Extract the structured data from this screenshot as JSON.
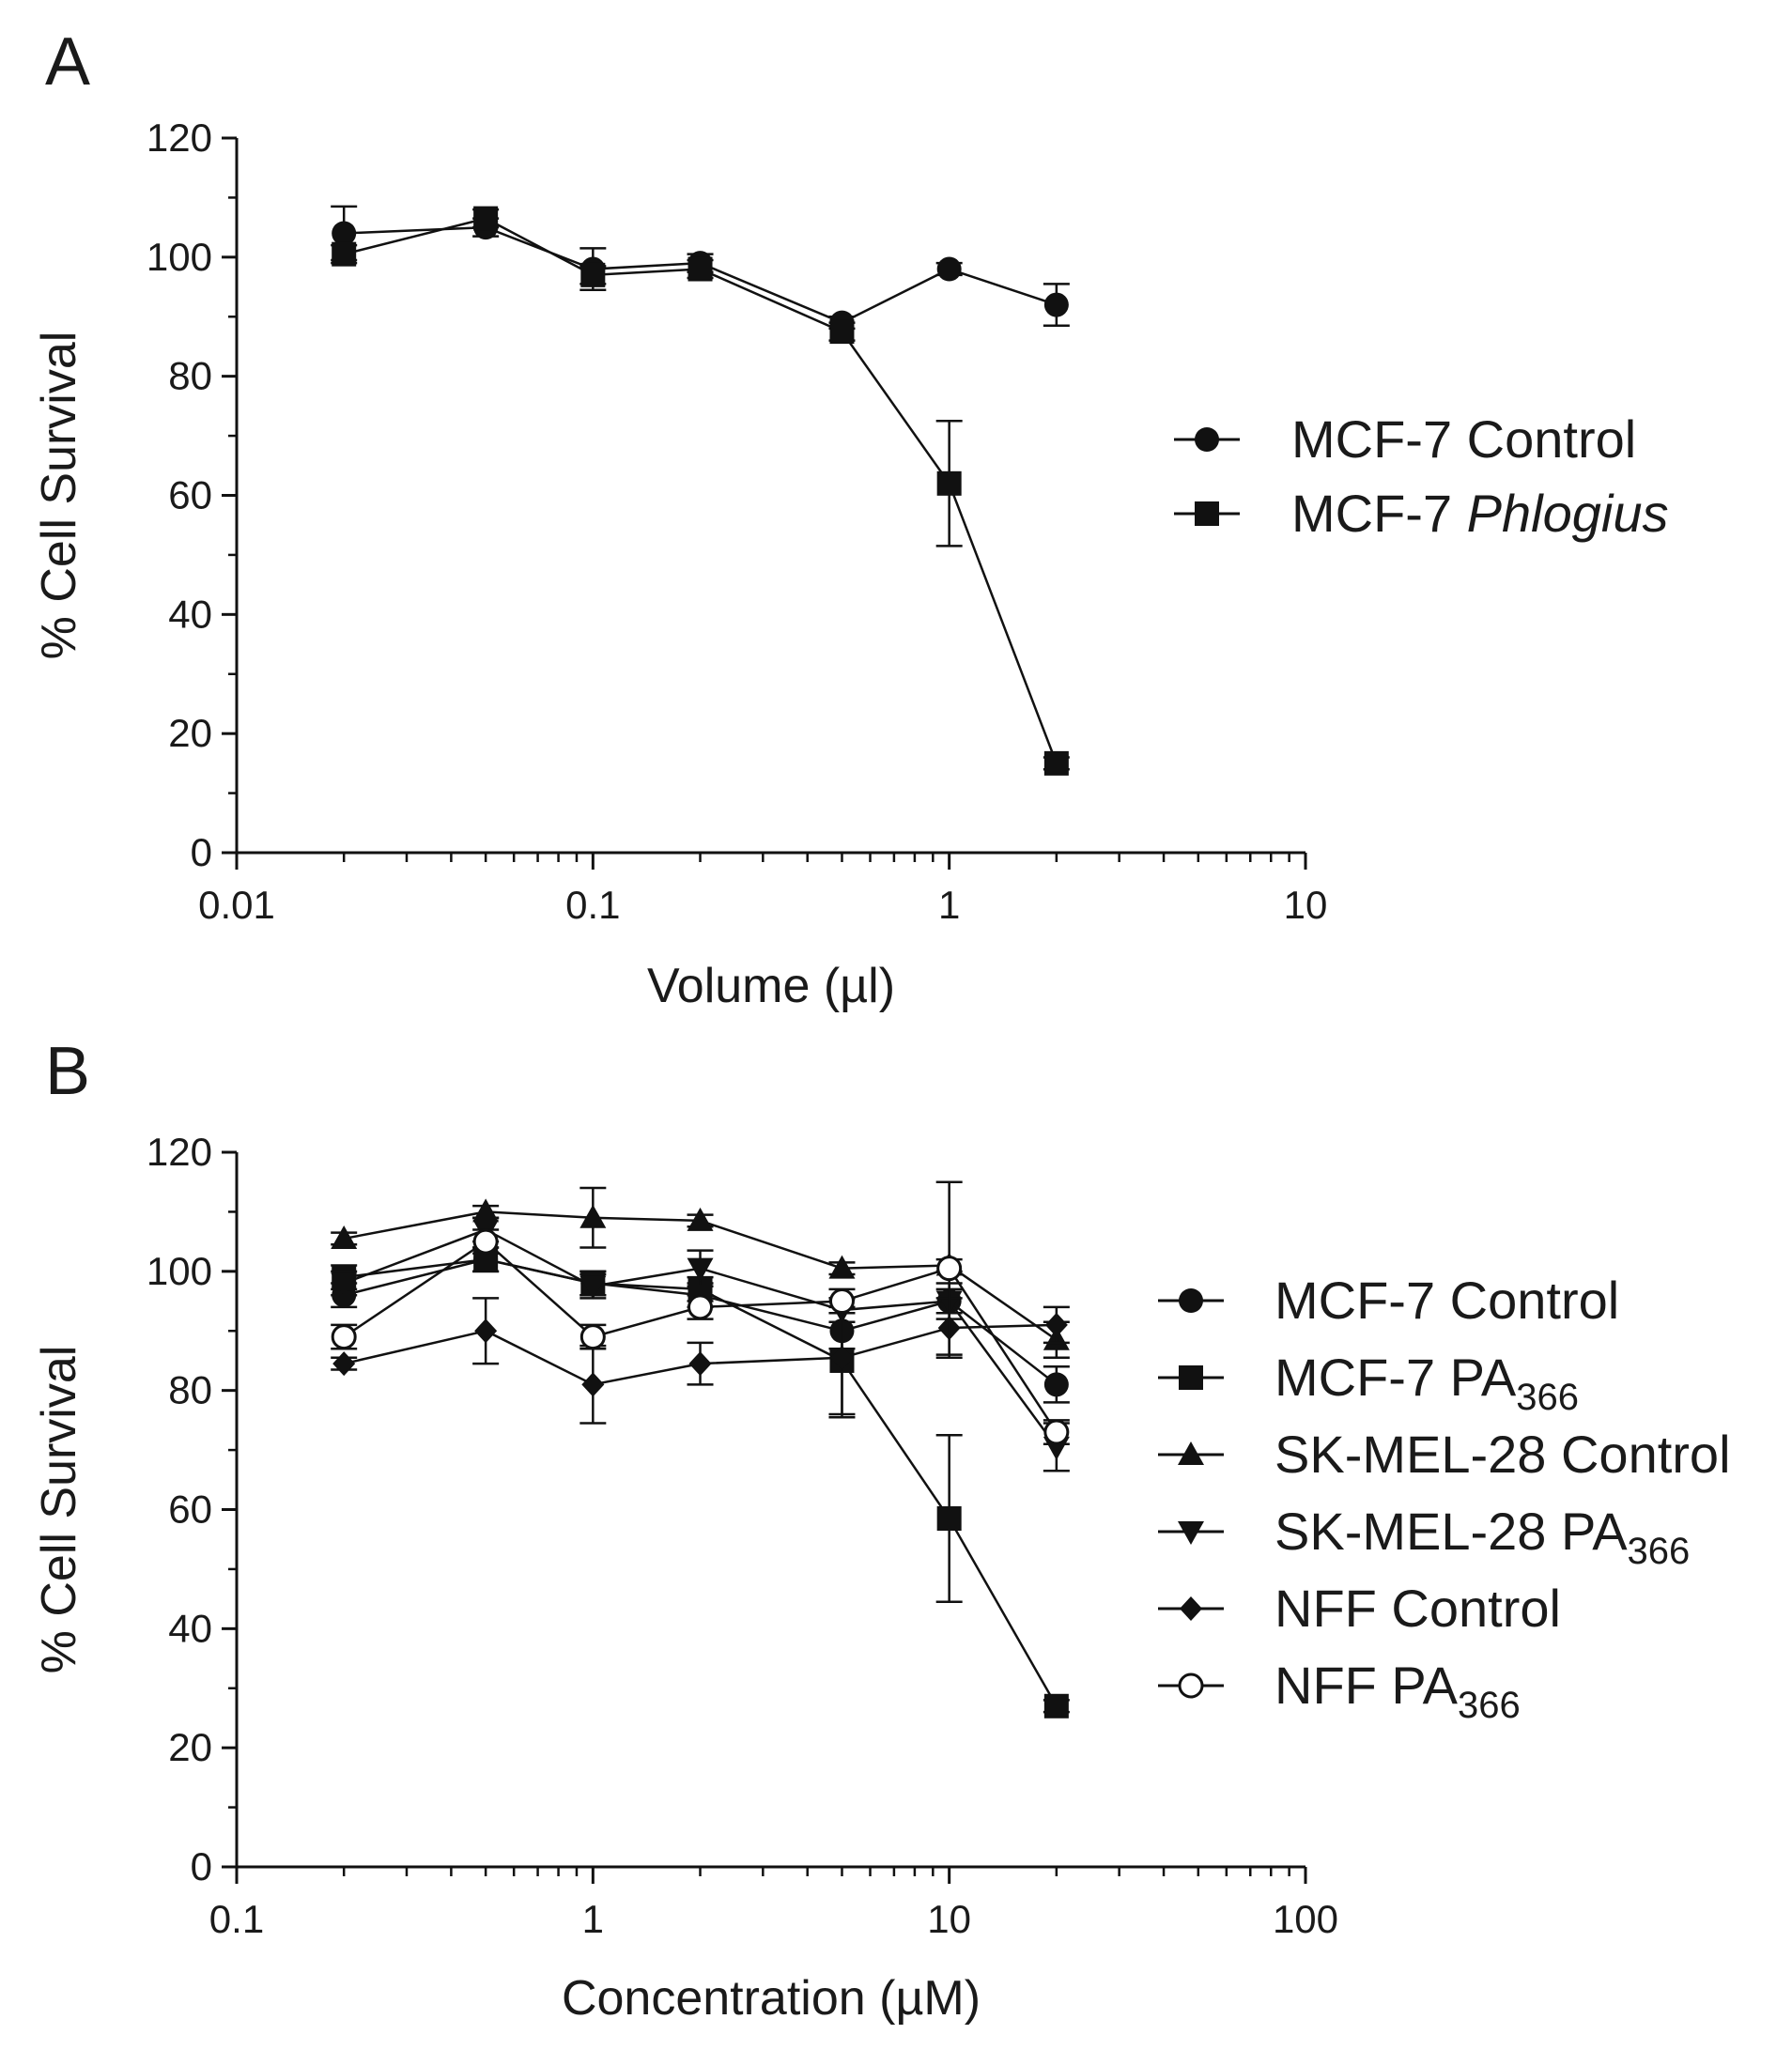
{
  "chart_data": [
    {
      "panel": "A",
      "type": "line",
      "x_scale": "log",
      "xlabel": "Volume (µl)",
      "ylabel": "% Cell Survival",
      "xlim": [
        0.01,
        10
      ],
      "ylim": [
        0,
        120
      ],
      "x_ticks": [
        0.01,
        0.1,
        1,
        10
      ],
      "x_tick_labels": [
        "0.01",
        "0.1",
        "1",
        "10"
      ],
      "y_ticks": [
        0,
        20,
        40,
        60,
        80,
        100,
        120
      ],
      "y_tick_labels": [
        "0",
        "20",
        "40",
        "60",
        "80",
        "100",
        "120"
      ],
      "legend": "right",
      "series": [
        {
          "name": "MCF-7 Control",
          "label_main": "MCF-7 Control",
          "label_italic": "",
          "marker": "circle",
          "x": [
            0.02,
            0.05,
            0.1,
            0.2,
            0.5,
            1,
            2
          ],
          "y": [
            104,
            105,
            98,
            99,
            89,
            98,
            92
          ],
          "err": [
            4.5,
            1.5,
            3.5,
            1.5,
            1,
            1,
            3.5
          ]
        },
        {
          "name": "MCF-7 Phlogius",
          "label_main": "MCF-7 ",
          "label_italic": "Phlogius",
          "marker": "square",
          "x": [
            0.02,
            0.05,
            0.1,
            0.2,
            0.5,
            1,
            2
          ],
          "y": [
            100.5,
            106.5,
            97,
            98,
            87.5,
            62,
            15
          ],
          "err": [
            1.5,
            1.5,
            1.5,
            1.5,
            1.5,
            10.5,
            1
          ]
        }
      ]
    },
    {
      "panel": "B",
      "type": "line",
      "x_scale": "log",
      "xlabel": "Concentration (µM)",
      "ylabel": "% Cell Survival",
      "xlim": [
        0.1,
        100
      ],
      "ylim": [
        0,
        120
      ],
      "x_ticks": [
        0.1,
        1,
        10,
        100
      ],
      "x_tick_labels": [
        "0.1",
        "1",
        "10",
        "100"
      ],
      "y_ticks": [
        0,
        20,
        40,
        60,
        80,
        100,
        120
      ],
      "y_tick_labels": [
        "0",
        "20",
        "40",
        "60",
        "80",
        "100",
        "120"
      ],
      "legend": "right",
      "series": [
        {
          "name": "MCF-7 Control",
          "label_main": "MCF-7 Control",
          "label_sub": "",
          "marker": "circle",
          "x": [
            0.2,
            0.5,
            1,
            2,
            5,
            10,
            20
          ],
          "y": [
            96,
            102,
            98,
            96,
            90,
            95,
            81
          ],
          "err": [
            2,
            2,
            2,
            2,
            3,
            3,
            3
          ]
        },
        {
          "name": "MCF-7 PA366",
          "label_main": "MCF-7 PA",
          "label_sub": "366",
          "marker": "square",
          "x": [
            0.2,
            0.5,
            1,
            2,
            5,
            10,
            20
          ],
          "y": [
            99,
            102,
            98,
            97,
            85,
            58.5,
            27
          ],
          "err": [
            2,
            2,
            2,
            2,
            9,
            14,
            1
          ]
        },
        {
          "name": "SK-MEL-28 Control",
          "label_main": "SK-MEL-28 Control",
          "label_sub": "",
          "marker": "triangle-up",
          "x": [
            0.2,
            0.5,
            1,
            2,
            5,
            10,
            20
          ],
          "y": [
            105.5,
            110,
            109,
            108.5,
            100.5,
            101,
            88.5
          ],
          "err": [
            1,
            1,
            5,
            1,
            1,
            1,
            3
          ]
        },
        {
          "name": "SK-MEL-28 PA366",
          "label_main": "SK-MEL-28 PA",
          "label_sub": "366",
          "marker": "triangle-down",
          "x": [
            0.2,
            0.5,
            1,
            2,
            5,
            10,
            20
          ],
          "y": [
            98,
            107,
            97.5,
            100.5,
            93.5,
            95,
            70.5
          ],
          "err": [
            2,
            2,
            2,
            3,
            2,
            2,
            4
          ]
        },
        {
          "name": "NFF Control",
          "label_main": "NFF Control",
          "label_sub": "",
          "marker": "diamond",
          "x": [
            0.2,
            0.5,
            1,
            2,
            5,
            10,
            20
          ],
          "y": [
            84.5,
            90,
            81,
            84.5,
            85.5,
            90.5,
            91
          ],
          "err": [
            1,
            5.5,
            6.5,
            3.5,
            10,
            5,
            3
          ]
        },
        {
          "name": "NFF PA366",
          "label_main": "NFF PA",
          "label_sub": "366",
          "marker": "circle-open",
          "x": [
            0.2,
            0.5,
            1,
            2,
            5,
            10,
            20
          ],
          "y": [
            89,
            105,
            89,
            94,
            95,
            100.5,
            73
          ],
          "err": [
            2,
            2,
            2,
            2,
            2,
            14.5,
            2
          ]
        }
      ]
    }
  ],
  "panels": [
    {
      "label": "A"
    },
    {
      "label": "B"
    }
  ]
}
